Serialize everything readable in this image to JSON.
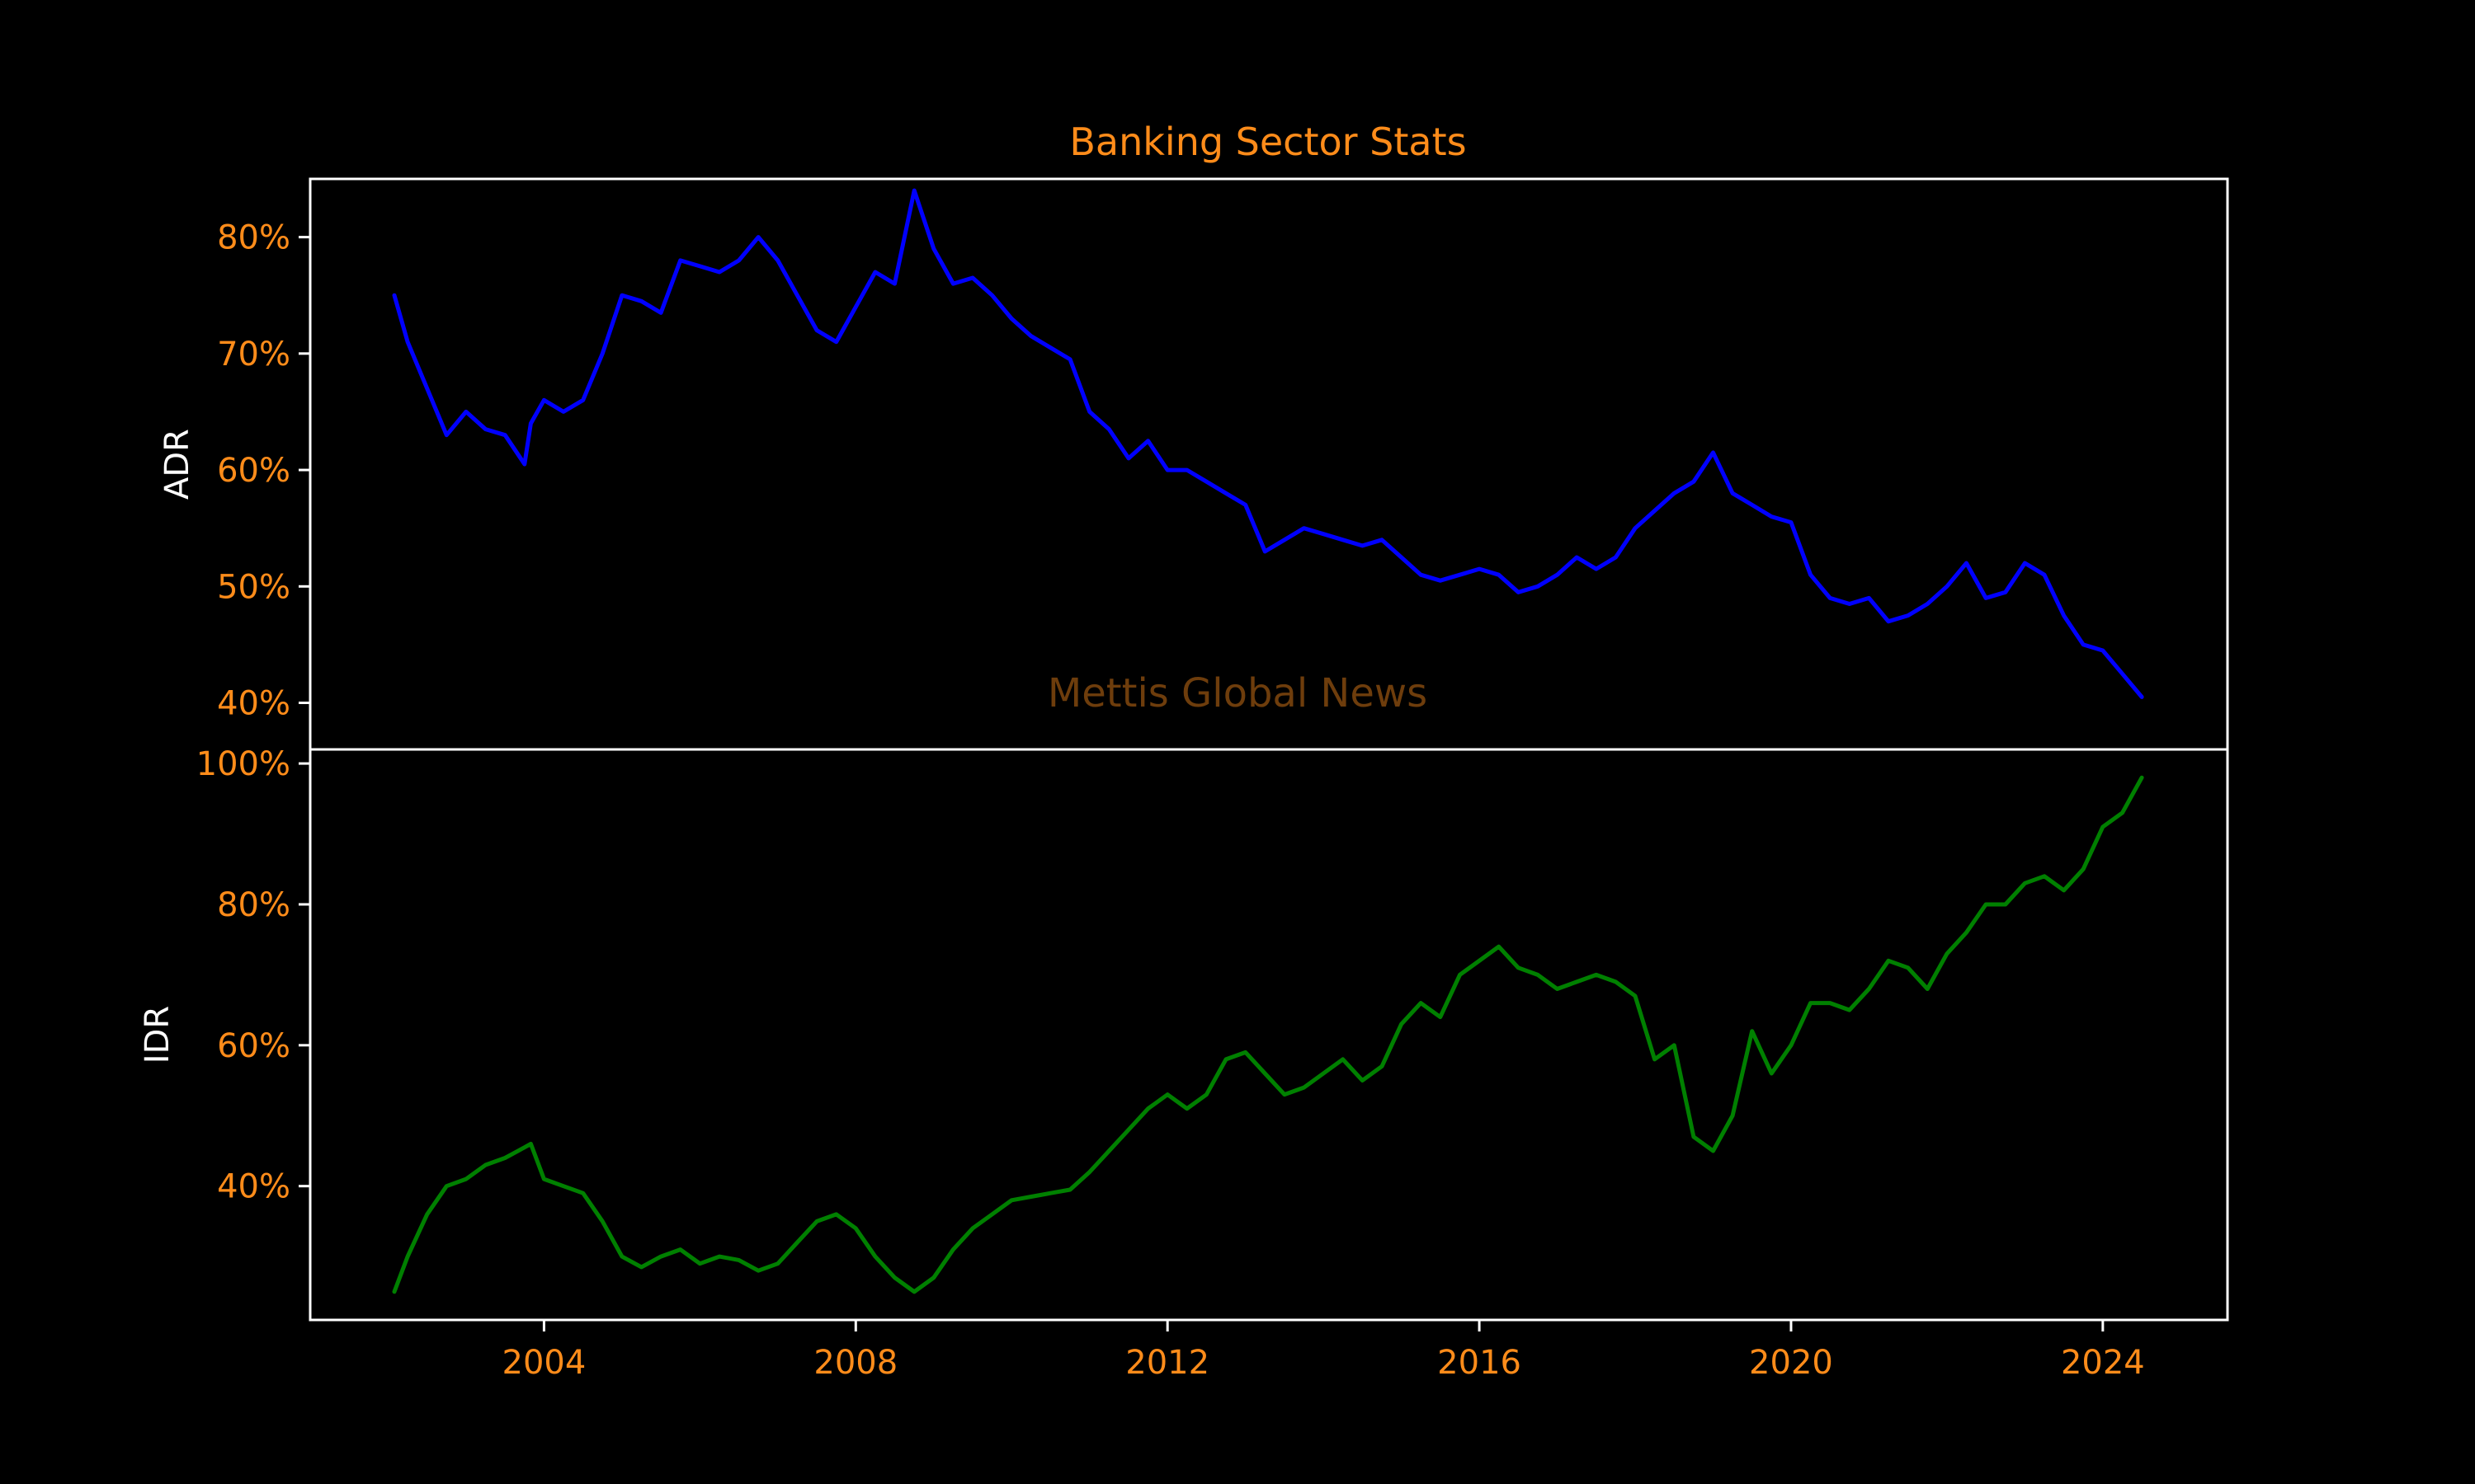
{
  "figure": {
    "title": "Banking Sector Stats",
    "watermark": "Mettis Global News",
    "background": "#000000",
    "title_color": "#ff8c1a",
    "tick_color": "#ff8c1a",
    "axis_label_color": "#ffffff",
    "frame_color": "#ffffff",
    "watermark_color": "#6e3d0c"
  },
  "chart_data": [
    {
      "type": "line",
      "title": "Banking Sector Stats",
      "ylabel": "ADR",
      "xlabel": "",
      "x_unit": "year",
      "xlim": [
        2001.0,
        2025.6
      ],
      "ylim": [
        36,
        85
      ],
      "yticks": [
        40,
        50,
        60,
        70,
        80
      ],
      "ytick_labels": [
        "40%",
        "50%",
        "60%",
        "70%",
        "80%"
      ],
      "grid": false,
      "series": [
        {
          "color": "#0000ff",
          "x": [
            2002.08,
            2002.25,
            2002.5,
            2002.75,
            2003.0,
            2003.25,
            2003.5,
            2003.75,
            2003.83,
            2004.0,
            2004.25,
            2004.5,
            2004.75,
            2005.0,
            2005.25,
            2005.5,
            2005.75,
            2006.0,
            2006.25,
            2006.5,
            2006.75,
            2007.0,
            2007.25,
            2007.5,
            2007.75,
            2008.0,
            2008.25,
            2008.5,
            2008.75,
            2009.0,
            2009.25,
            2009.5,
            2009.75,
            2010.0,
            2010.25,
            2010.5,
            2010.75,
            2011.0,
            2011.25,
            2011.5,
            2011.75,
            2012.0,
            2012.25,
            2012.5,
            2012.75,
            2013.0,
            2013.25,
            2013.5,
            2013.75,
            2014.0,
            2014.25,
            2014.5,
            2014.75,
            2015.0,
            2015.25,
            2015.5,
            2015.75,
            2016.0,
            2016.25,
            2016.5,
            2016.75,
            2017.0,
            2017.25,
            2017.5,
            2017.75,
            2018.0,
            2018.25,
            2018.5,
            2018.75,
            2019.0,
            2019.25,
            2019.5,
            2019.75,
            2020.0,
            2020.25,
            2020.5,
            2020.75,
            2021.0,
            2021.25,
            2021.5,
            2021.75,
            2022.0,
            2022.25,
            2022.5,
            2022.75,
            2023.0,
            2023.25,
            2023.5,
            2023.75,
            2024.0,
            2024.25,
            2024.5
          ],
          "values": [
            75,
            71,
            67,
            63,
            65,
            63.5,
            63,
            60.5,
            64,
            66,
            65,
            66,
            70,
            75,
            74.5,
            73.5,
            78,
            77.5,
            77,
            78,
            80,
            78,
            75,
            72,
            71,
            74,
            77,
            76,
            84,
            79,
            76,
            76.5,
            75,
            73,
            71.5,
            70.5,
            69.5,
            65,
            63.5,
            61,
            62.5,
            60,
            60,
            59,
            58,
            57,
            53,
            54,
            55,
            54.5,
            54,
            53.5,
            54,
            52.5,
            51,
            50.5,
            51,
            51.5,
            51,
            49.5,
            50,
            51,
            52.5,
            51.5,
            52.5,
            55,
            56.5,
            58,
            59,
            61.5,
            58,
            57,
            56,
            55.5,
            51,
            49,
            48.5,
            49,
            47,
            47.5,
            48.5,
            50,
            52,
            49,
            49.5,
            52,
            51,
            47.5,
            45,
            44.5,
            42.5,
            40.5
          ]
        }
      ]
    },
    {
      "type": "line",
      "ylabel": "IDR",
      "xlabel": "",
      "x_unit": "year",
      "xlim": [
        2001.0,
        2025.6
      ],
      "ylim": [
        21,
        102
      ],
      "xticks": [
        2004,
        2008,
        2012,
        2016,
        2020,
        2024
      ],
      "xtick_labels": [
        "2004",
        "2008",
        "2012",
        "2016",
        "2020",
        "2024"
      ],
      "yticks": [
        40,
        60,
        80,
        100
      ],
      "ytick_labels": [
        "40%",
        "60%",
        "80%",
        "100%"
      ],
      "grid": false,
      "series": [
        {
          "color": "#008000",
          "x": [
            2002.08,
            2002.25,
            2002.5,
            2002.75,
            2003.0,
            2003.25,
            2003.5,
            2003.75,
            2003.83,
            2004.0,
            2004.25,
            2004.5,
            2004.75,
            2005.0,
            2005.25,
            2005.5,
            2005.75,
            2006.0,
            2006.25,
            2006.5,
            2006.75,
            2007.0,
            2007.25,
            2007.5,
            2007.75,
            2008.0,
            2008.25,
            2008.5,
            2008.75,
            2009.0,
            2009.25,
            2009.5,
            2009.75,
            2010.0,
            2010.25,
            2010.5,
            2010.75,
            2011.0,
            2011.25,
            2011.5,
            2011.75,
            2012.0,
            2012.25,
            2012.5,
            2012.75,
            2013.0,
            2013.25,
            2013.5,
            2013.75,
            2014.0,
            2014.25,
            2014.5,
            2014.75,
            2015.0,
            2015.25,
            2015.5,
            2015.75,
            2016.0,
            2016.25,
            2016.5,
            2016.75,
            2017.0,
            2017.25,
            2017.5,
            2017.75,
            2018.0,
            2018.25,
            2018.5,
            2018.75,
            2019.0,
            2019.25,
            2019.5,
            2019.75,
            2020.0,
            2020.25,
            2020.5,
            2020.75,
            2021.0,
            2021.25,
            2021.5,
            2021.75,
            2022.0,
            2022.25,
            2022.5,
            2022.75,
            2023.0,
            2023.25,
            2023.5,
            2023.75,
            2024.0,
            2024.25,
            2024.5
          ],
          "values": [
            25,
            30,
            36,
            40,
            41,
            43,
            44,
            45.5,
            46,
            41,
            40,
            39,
            35,
            30,
            28.5,
            30,
            31,
            29,
            30,
            29.5,
            28,
            29,
            32,
            35,
            36,
            34,
            30,
            27,
            25,
            27,
            31,
            34,
            36,
            38,
            38.5,
            39,
            39.5,
            42,
            45,
            48,
            51,
            53,
            51,
            53,
            58,
            59,
            56,
            53,
            54,
            56,
            58,
            55,
            57,
            63,
            66,
            64,
            70,
            72,
            74,
            71,
            70,
            68,
            69,
            70,
            69,
            67,
            58,
            60,
            47,
            45,
            50,
            62,
            56,
            60,
            66,
            66,
            65,
            68,
            72,
            71,
            68,
            73,
            76,
            80,
            80,
            83,
            84,
            82,
            85,
            91,
            93,
            98
          ]
        }
      ]
    }
  ]
}
